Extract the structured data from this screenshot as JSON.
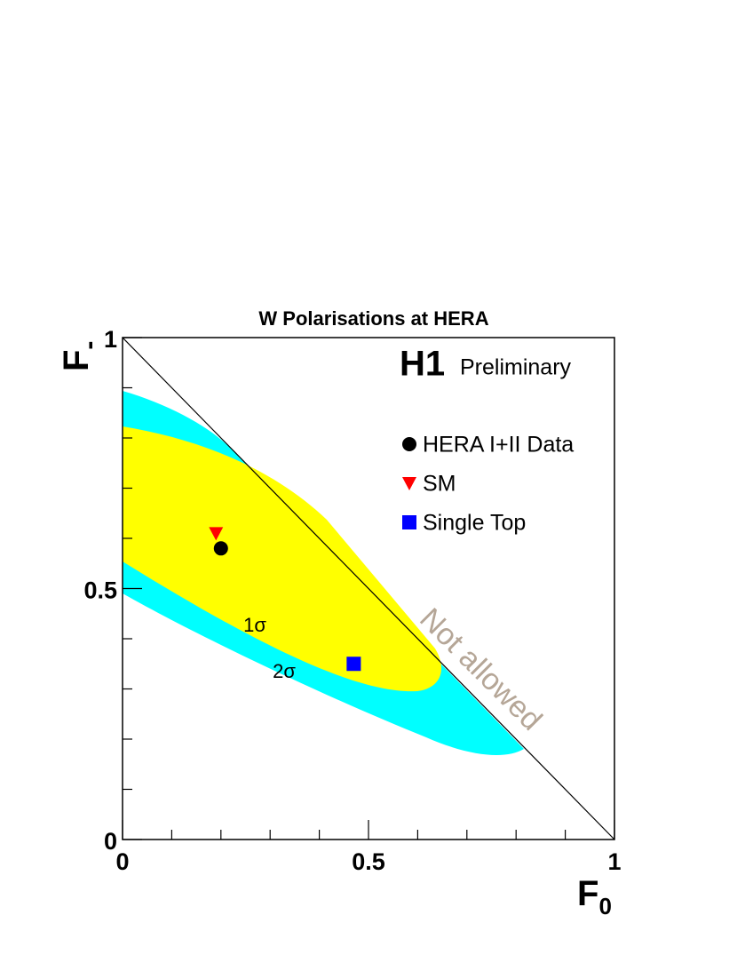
{
  "chart_data": {
    "type": "scatter",
    "title": "W Polarisations at HERA",
    "xlabel": {
      "text": "F",
      "sub": "0"
    },
    "ylabel": {
      "text": "F",
      "sub": "-"
    },
    "xlim": [
      0,
      1
    ],
    "ylim": [
      0,
      1
    ],
    "xticks": [
      0,
      0.5,
      1
    ],
    "yticks": [
      0,
      0.5,
      1
    ],
    "xminor": [
      0.1,
      0.2,
      0.3,
      0.4,
      0.6,
      0.7,
      0.8,
      0.9
    ],
    "yminor": [
      0.1,
      0.2,
      0.3,
      0.4,
      0.6,
      0.7,
      0.8,
      0.9
    ],
    "experiment": "H1",
    "status": "Preliminary",
    "annotations": {
      "one_sigma": "1σ",
      "two_sigma": "2σ",
      "forbidden": "Not allowed"
    },
    "region_colors": {
      "two_sigma": "#00ffff",
      "one_sigma": "#ffff00"
    },
    "series": [
      {
        "name": "HERA I+II Data",
        "color": "#000000",
        "marker": "circle",
        "x": [
          0.2
        ],
        "y": [
          0.58
        ]
      },
      {
        "name": "SM",
        "color": "#ff0000",
        "marker": "triangle-down",
        "x": [
          0.19
        ],
        "y": [
          0.61
        ]
      },
      {
        "name": "Single Top",
        "color": "#0000ff",
        "marker": "square",
        "x": [
          0.47
        ],
        "y": [
          0.35
        ]
      }
    ]
  }
}
